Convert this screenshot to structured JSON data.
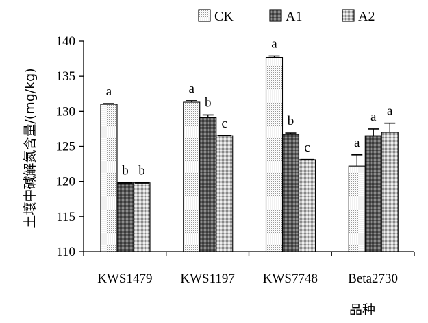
{
  "chart_data": {
    "type": "bar",
    "title": "",
    "xlabel": "品种",
    "ylabel": "土壤中碱解氮含量/(mg/kg)",
    "ylim": [
      110,
      140
    ],
    "yticks": [
      "110",
      "115",
      "120",
      "125",
      "130",
      "135",
      "140"
    ],
    "categories": [
      "KWS1479",
      "KWS1197",
      "KWS7748",
      "Beta2730"
    ],
    "grid": false,
    "legend_position": "top",
    "series": [
      {
        "name": "CK",
        "pattern": "dots-light",
        "values": [
          131.0,
          131.3,
          137.7,
          122.2
        ],
        "errors": [
          0.1,
          0.2,
          0.2,
          1.6
        ],
        "labels": [
          "a",
          "a",
          "a",
          "a"
        ]
      },
      {
        "name": "A1",
        "pattern": "dots-dark",
        "values": [
          119.8,
          129.1,
          126.7,
          126.5
        ],
        "errors": [
          0.0,
          0.4,
          0.2,
          1.0
        ],
        "labels": [
          "b",
          "b",
          "b",
          "a"
        ]
      },
      {
        "name": "A2",
        "pattern": "dots-medium",
        "values": [
          119.8,
          126.5,
          123.1,
          127.0
        ],
        "errors": [
          0.0,
          0.0,
          0.0,
          1.3
        ],
        "labels": [
          "b",
          "c",
          "c",
          "a"
        ]
      }
    ]
  }
}
